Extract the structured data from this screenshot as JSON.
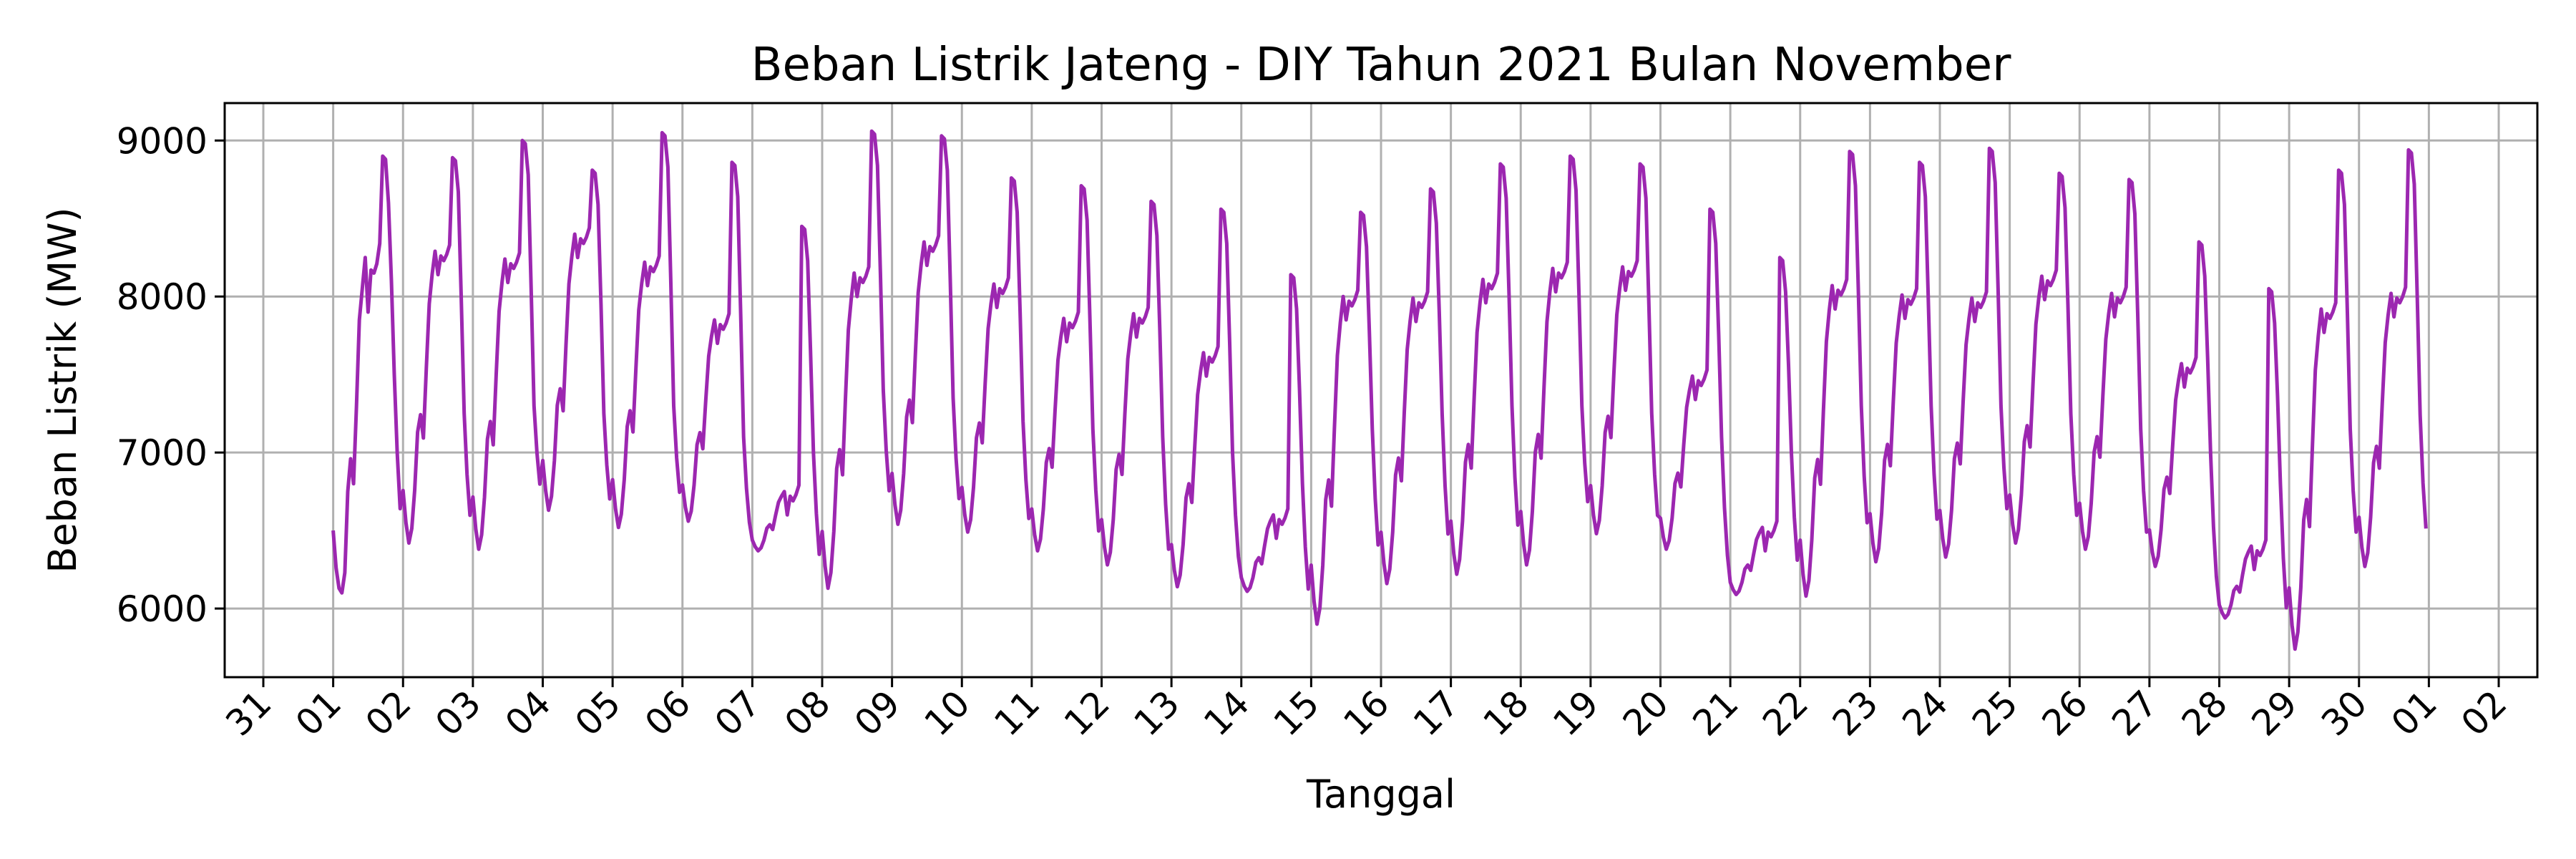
{
  "chart_data": {
    "type": "line",
    "title": "Beban Listrik Jateng - DIY Tahun 2021 Bulan November",
    "xlabel": "Tanggal",
    "ylabel": "Beban Listrik (MW)",
    "grid": true,
    "xlim": [
      "2021-10-31",
      "2021-12-02"
    ],
    "ylim": [
      5560,
      9240
    ],
    "x_tick_labels": [
      "31",
      "01",
      "02",
      "03",
      "04",
      "05",
      "06",
      "07",
      "08",
      "09",
      "10",
      "11",
      "12",
      "13",
      "14",
      "15",
      "16",
      "17",
      "18",
      "19",
      "20",
      "21",
      "22",
      "23",
      "24",
      "25",
      "26",
      "27",
      "28",
      "29",
      "30",
      "01",
      "02"
    ],
    "y_ticks": [
      6000,
      7000,
      8000,
      9000
    ],
    "y_tick_labels": [
      "6000",
      "7000",
      "8000",
      "9000"
    ],
    "line_color": "#9c27b0",
    "series": [
      {
        "x_start": "2021-11-01 00:00",
        "x_interval": "1 hour",
        "values": [
          6500,
          6260,
          6130,
          6100,
          6230,
          6750,
          6960,
          6800,
          7300,
          7850,
          8050,
          8250,
          7900,
          8170,
          8150,
          8210,
          8340,
          8900,
          8880,
          8600,
          8100,
          7500,
          7000,
          6640
        ],
        "daily_pattern_note": ""
      }
    ],
    "daily": [
      {
        "day": "01",
        "min": 6100,
        "noon": 8250,
        "peak": 8900,
        "late": 7200
      },
      {
        "day": "02",
        "min": 6420,
        "noon": 8290,
        "peak": 8890,
        "late": 7250
      },
      {
        "day": "03",
        "min": 6380,
        "noon": 8240,
        "peak": 9000,
        "late": 7300
      },
      {
        "day": "04",
        "min": 6630,
        "noon": 8400,
        "peak": 8810,
        "late": 7250
      },
      {
        "day": "05",
        "min": 6520,
        "noon": 8220,
        "peak": 9050,
        "late": 7300
      },
      {
        "day": "06",
        "min": 6560,
        "noon": 7850,
        "peak": 8860,
        "late": 7100
      },
      {
        "day": "07",
        "min": 6370,
        "noon": 6750,
        "peak": 8450,
        "late": 7000
      },
      {
        "day": "08",
        "min": 6130,
        "noon": 8150,
        "peak": 9060,
        "late": 7400
      },
      {
        "day": "09",
        "min": 6540,
        "noon": 8350,
        "peak": 9030,
        "late": 7350
      },
      {
        "day": "10",
        "min": 6490,
        "noon": 8080,
        "peak": 8760,
        "late": 7200
      },
      {
        "day": "11",
        "min": 6370,
        "noon": 7860,
        "peak": 8710,
        "late": 7150
      },
      {
        "day": "12",
        "min": 6280,
        "noon": 7890,
        "peak": 8610,
        "late": 7100
      },
      {
        "day": "13",
        "min": 6140,
        "noon": 7640,
        "peak": 8560,
        "late": 7000
      },
      {
        "day": "14",
        "min": 6110,
        "noon": 6600,
        "peak": 8140,
        "late": 6800
      },
      {
        "day": "15",
        "min": 5900,
        "noon": 8000,
        "peak": 8540,
        "late": 7150
      },
      {
        "day": "16",
        "min": 6160,
        "noon": 7990,
        "peak": 8690,
        "late": 7250
      },
      {
        "day": "17",
        "min": 6220,
        "noon": 8110,
        "peak": 8850,
        "late": 7300
      },
      {
        "day": "18",
        "min": 6280,
        "noon": 8180,
        "peak": 8900,
        "late": 7300
      },
      {
        "day": "19",
        "min": 6480,
        "noon": 8190,
        "peak": 8850,
        "late": 7250
      },
      {
        "day": "20",
        "min": 6380,
        "noon": 7490,
        "peak": 8560,
        "late": 7100
      },
      {
        "day": "21",
        "min": 6090,
        "noon": 6520,
        "peak": 8250,
        "late": 7000
      },
      {
        "day": "22",
        "min": 6080,
        "noon": 8070,
        "peak": 8930,
        "late": 7300
      },
      {
        "day": "23",
        "min": 6300,
        "noon": 8010,
        "peak": 8860,
        "late": 7300
      },
      {
        "day": "24",
        "min": 6330,
        "noon": 7990,
        "peak": 8950,
        "late": 7300
      },
      {
        "day": "25",
        "min": 6420,
        "noon": 8130,
        "peak": 8790,
        "late": 7250
      },
      {
        "day": "26",
        "min": 6380,
        "noon": 8020,
        "peak": 8750,
        "late": 7150
      },
      {
        "day": "27",
        "min": 6270,
        "noon": 7570,
        "peak": 8350,
        "late": 7000
      },
      {
        "day": "28",
        "min": 5940,
        "noon": 6400,
        "peak": 8050,
        "late": 6800
      },
      {
        "day": "29",
        "min": 5740,
        "noon": 7920,
        "peak": 8810,
        "late": 7150
      },
      {
        "day": "30",
        "min": 6270,
        "noon": 8020,
        "peak": 8940,
        "late": 7240
      }
    ]
  }
}
